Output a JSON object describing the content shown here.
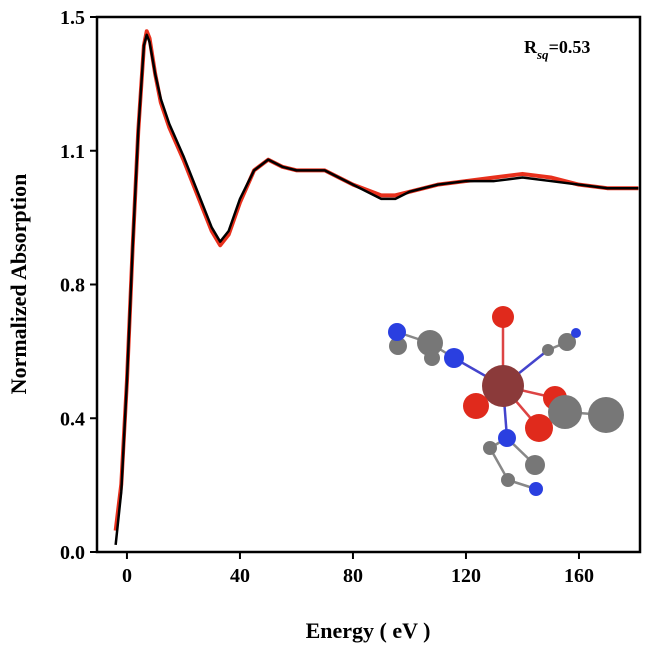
{
  "chart_data": {
    "type": "line",
    "x_label": "Energy ( eV )",
    "y_label": "Normalized Absorption",
    "annotation": {
      "main": "R",
      "sub": "sq",
      "suffix": "=0.53"
    },
    "x": [
      -4,
      -2,
      0,
      2,
      4,
      6,
      7,
      8,
      10,
      12,
      15,
      20,
      25,
      30,
      33,
      36,
      40,
      45,
      50,
      55,
      60,
      70,
      80,
      90,
      95,
      100,
      110,
      120,
      130,
      140,
      150,
      160,
      170,
      181
    ],
    "series": [
      {
        "color": "#e8301c",
        "values": [
          0.06,
          0.19,
          0.48,
          0.85,
          1.18,
          1.42,
          1.46,
          1.44,
          1.34,
          1.26,
          1.19,
          1.1,
          1.0,
          0.9,
          0.86,
          0.89,
          0.98,
          1.07,
          1.1,
          1.08,
          1.07,
          1.07,
          1.03,
          1.0,
          1.0,
          1.01,
          1.03,
          1.04,
          1.05,
          1.06,
          1.05,
          1.03,
          1.02,
          1.02
        ]
      },
      {
        "color": "#000000",
        "values": [
          0.02,
          0.17,
          0.48,
          0.85,
          1.18,
          1.42,
          1.45,
          1.43,
          1.34,
          1.27,
          1.2,
          1.11,
          1.01,
          0.91,
          0.87,
          0.9,
          0.99,
          1.07,
          1.1,
          1.08,
          1.07,
          1.07,
          1.03,
          0.99,
          0.99,
          1.01,
          1.03,
          1.04,
          1.04,
          1.05,
          1.04,
          1.03,
          1.02,
          1.02
        ]
      }
    ],
    "xlim": [
      -10.6,
      181.6
    ],
    "xticks": [
      0,
      40,
      80,
      120,
      160
    ],
    "ylim": [
      0,
      1.5
    ],
    "yticks": [
      {
        "value": 0,
        "label": "0.0"
      },
      {
        "value": 0.375,
        "label": "0.4"
      },
      {
        "value": 0.75,
        "label": "0.8"
      },
      {
        "value": 1.125,
        "label": "1.1"
      },
      {
        "value": 1.5,
        "label": "1.5"
      }
    ]
  }
}
